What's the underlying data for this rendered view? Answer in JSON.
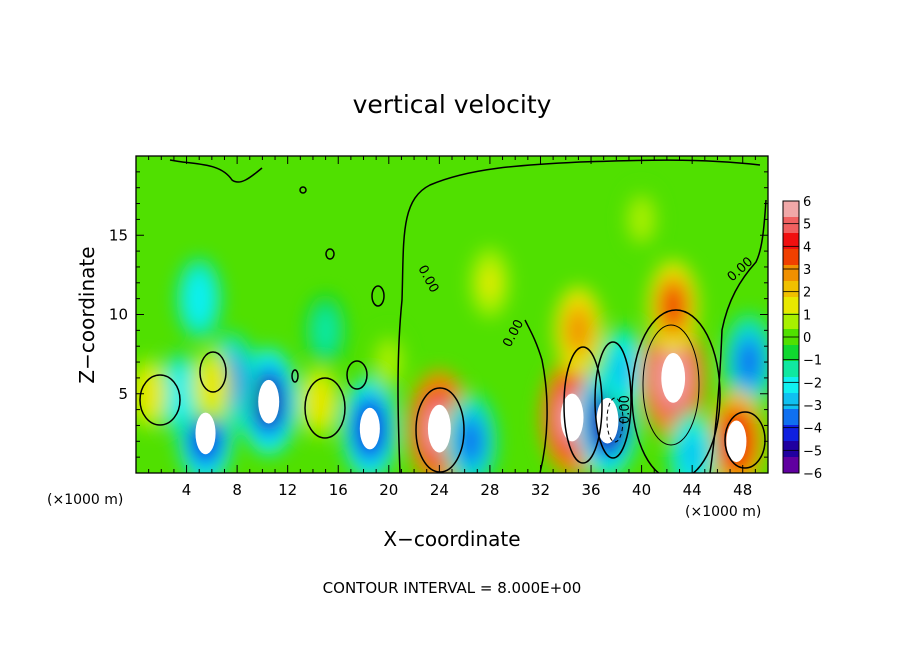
{
  "chart_data": {
    "type": "heatmap",
    "title": "vertical velocity",
    "xlabel": "X−coordinate",
    "ylabel": "Z−coordinate",
    "x_unit_left": "(×1000 m)",
    "x_unit_right": "(×1000 m)",
    "x_ticks": [
      "4",
      "8",
      "12",
      "16",
      "20",
      "24",
      "28",
      "32",
      "36",
      "40",
      "44",
      "48"
    ],
    "x_tick_values": [
      4,
      8,
      12,
      16,
      20,
      24,
      28,
      32,
      36,
      40,
      44,
      48
    ],
    "y_ticks": [
      "5",
      "10",
      "15"
    ],
    "y_tick_values": [
      5,
      10,
      15
    ],
    "xlim": [
      0,
      50
    ],
    "ylim": [
      0,
      20
    ],
    "colorbar": {
      "labels": [
        "6",
        "5",
        "4",
        "3",
        "2",
        "1",
        "0",
        "−1",
        "−2",
        "−3",
        "−4",
        "−5",
        "−6"
      ],
      "values": [
        6,
        5,
        4,
        3,
        2,
        1,
        0,
        -1,
        -2,
        -3,
        -4,
        -5,
        -6
      ],
      "range": [
        -6,
        6
      ],
      "colors": [
        "#f0a8a8",
        "#f06060",
        "#f01010",
        "#f04000",
        "#f09000",
        "#f0c000",
        "#e8e800",
        "#a8f000",
        "#50e000",
        "#10d830",
        "#10e8a0",
        "#10f0f0",
        "#10c0f0",
        "#1070f0",
        "#1020e0",
        "#2000a0",
        "#6000a0"
      ],
      "placement": "right"
    },
    "contour_labels": [
      "0.00",
      "0.00",
      "0.00",
      "0.00"
    ],
    "contour_interval_text": "CONTOUR INTERVAL = 8.000E+00",
    "features": [
      {
        "x": 5.5,
        "z": 2.5,
        "w": -4.5
      },
      {
        "x": 10.5,
        "z": 4.5,
        "w": -5
      },
      {
        "x": 7.5,
        "z": 5.8,
        "w": -4
      },
      {
        "x": 3.5,
        "z": 5,
        "w": -2.5
      },
      {
        "x": 6,
        "z": 5.5,
        "w": 1.8
      },
      {
        "x": 1,
        "z": 5,
        "w": 1.5
      },
      {
        "x": 14.5,
        "z": 4.5,
        "w": 1.5
      },
      {
        "x": 18.5,
        "z": 2.8,
        "w": -4.5
      },
      {
        "x": 15,
        "z": 9,
        "w": -1.5
      },
      {
        "x": 5,
        "z": 11,
        "w": -2.5
      },
      {
        "x": 20,
        "z": 7,
        "w": 0.8
      },
      {
        "x": 24,
        "z": 2.8,
        "w": 6
      },
      {
        "x": 26.5,
        "z": 2,
        "w": -4
      },
      {
        "x": 28,
        "z": 12,
        "w": 1.2
      },
      {
        "x": 34.5,
        "z": 3.5,
        "w": 6
      },
      {
        "x": 35,
        "z": 9,
        "w": 3
      },
      {
        "x": 37.3,
        "z": 3.3,
        "w": -5.5
      },
      {
        "x": 38.5,
        "z": 6.5,
        "w": -3
      },
      {
        "x": 42.5,
        "z": 6,
        "w": 6.5
      },
      {
        "x": 42.5,
        "z": 10.5,
        "w": 3.5
      },
      {
        "x": 48.5,
        "z": 7,
        "w": -4
      },
      {
        "x": 47.5,
        "z": 2,
        "w": 4.5
      },
      {
        "x": 40,
        "z": 16,
        "w": 0.8
      },
      {
        "x": 44,
        "z": 1.2,
        "w": -3
      }
    ]
  }
}
